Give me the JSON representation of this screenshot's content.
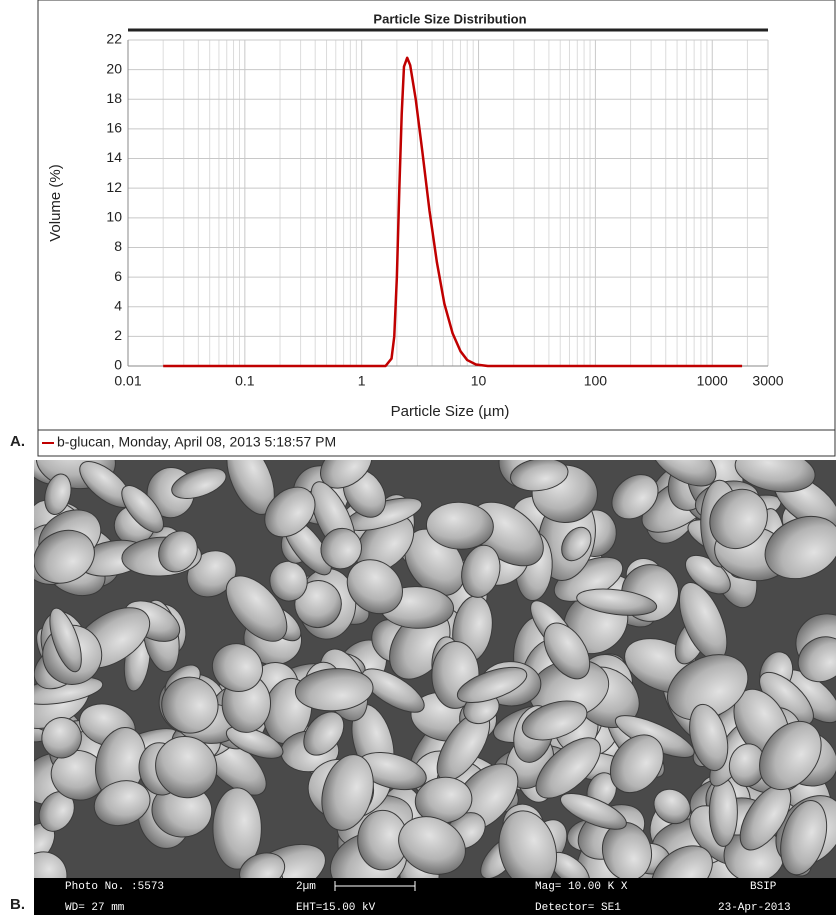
{
  "chart_data": {
    "type": "line",
    "title": "Particle Size Distribution",
    "x_label": "Particle Size (µm)",
    "y_label": "Volume (%)",
    "x": [
      0.02,
      0.1,
      1,
      1.6,
      1.8,
      1.9,
      2.0,
      2.1,
      2.2,
      2.3,
      2.45,
      2.6,
      2.9,
      3.3,
      3.8,
      4.4,
      5.1,
      6,
      7,
      8,
      9.5,
      12,
      100,
      1000,
      1800
    ],
    "series": [
      {
        "name": "b-glucan, Monday, April 08, 2013 5:18:57 PM",
        "color": "#c00000",
        "values": [
          0,
          0,
          0,
          0,
          0.5,
          2,
          6,
          12,
          17,
          20.2,
          20.8,
          20.3,
          18,
          14.5,
          10.5,
          7,
          4.2,
          2.2,
          1,
          0.4,
          0.1,
          0,
          0,
          0,
          0
        ]
      }
    ],
    "xlim": [
      0.01,
      3000
    ],
    "xticks": [
      0.01,
      0.1,
      1,
      10,
      100,
      1000,
      3000
    ],
    "xscale": "log",
    "ylim": [
      0,
      22
    ],
    "yticks": [
      0,
      2,
      4,
      6,
      8,
      10,
      12,
      14,
      16,
      18,
      20,
      22
    ],
    "grid": true,
    "minor_grid": true
  },
  "panel_labels": [
    "A.",
    "B."
  ],
  "sem_image": {
    "footer": [
      [
        "Photo No. :5573",
        "2µm",
        "Mag= 10.00 K X",
        "BSIP"
      ],
      [
        "WD=  27 mm",
        "EHT=15.00 kV",
        "Detector= SE1",
        "23-Apr-2013"
      ]
    ]
  }
}
